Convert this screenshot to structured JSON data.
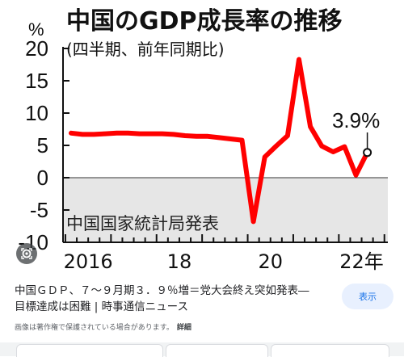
{
  "chart_data": {
    "type": "line",
    "title": "中国のGDP成長率の推移",
    "subtitle": "(四半期、前年同期比)",
    "ylabel": "%",
    "ylim": [
      -10,
      20
    ],
    "yticks": [
      "20",
      "15",
      "10",
      "5",
      "0",
      "-5",
      "-10"
    ],
    "xtick_labels": [
      {
        "label": "2016",
        "quarter": 0
      },
      {
        "label": "18",
        "quarter": 8
      },
      {
        "label": "20",
        "quarter": 16
      },
      {
        "label": "22年",
        "quarter": 24
      }
    ],
    "source": "中国国家統計局発表",
    "annotation": "3.9%",
    "series": [
      {
        "values": [
          6.9,
          6.7,
          6.7,
          6.8,
          6.9,
          6.9,
          6.8,
          6.8,
          6.8,
          6.7,
          6.5,
          6.4,
          6.4,
          6.2,
          6.0,
          5.8,
          -6.8,
          3.2,
          4.9,
          6.5,
          18.3,
          7.9,
          4.9,
          4.0,
          4.8,
          0.4,
          3.9
        ]
      }
    ],
    "colors": {
      "line": "#ff0000",
      "negative_area": "#e6e6e6",
      "text": "#111111"
    }
  },
  "caption": {
    "line1": "中国ＧＤＰ、７～９月期３．９％増＝党大会終え突如発表―",
    "line2": "目標達成は困難 | 時事通信ニュース"
  },
  "notice": {
    "text": "画像は著作権で保護されている場合があります。",
    "more": "詳細"
  },
  "show_button": "表示",
  "icons": {
    "lens": "lens-search-icon"
  }
}
